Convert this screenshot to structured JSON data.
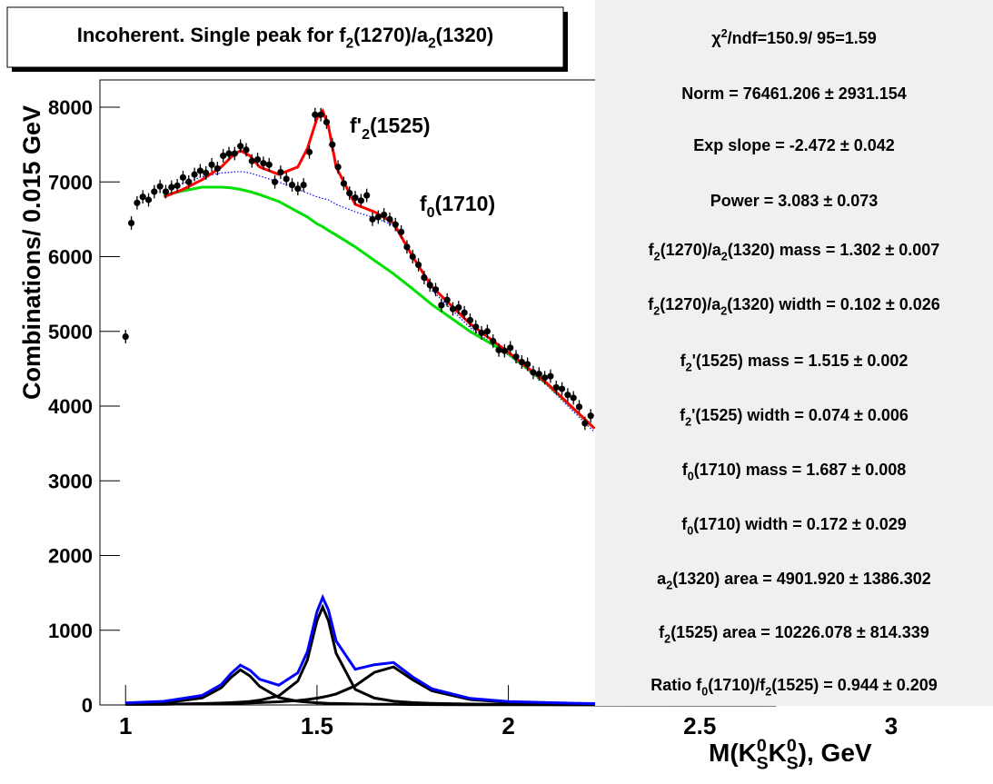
{
  "chart_data": {
    "type": "scatter",
    "title": [
      "Incoherent. Single peak for f",
      {
        "sub": "2"
      },
      "(1270)/a",
      {
        "sub": "2"
      },
      "(1320)"
    ],
    "xlabel": [
      "M(K",
      {
        "sup": "0",
        "sub": "S"
      },
      "K",
      {
        "sup": "0",
        "sub": "S"
      },
      "), GeV"
    ],
    "ylabel": "Combinations/ 0.015 GeV",
    "xlim": [
      0.933,
      3.05
    ],
    "ylim": [
      0,
      8365
    ],
    "xticks": [
      1,
      1.5,
      2,
      2.5,
      3
    ],
    "yticks": [
      0,
      1000,
      2000,
      3000,
      4000,
      5000,
      6000,
      7000,
      8000
    ],
    "x": [
      1.0,
      1.015,
      1.03,
      1.045,
      1.06,
      1.075,
      1.09,
      1.105,
      1.12,
      1.135,
      1.15,
      1.165,
      1.18,
      1.195,
      1.21,
      1.225,
      1.24,
      1.255,
      1.27,
      1.285,
      1.3,
      1.315,
      1.33,
      1.345,
      1.36,
      1.375,
      1.39,
      1.405,
      1.42,
      1.435,
      1.45,
      1.465,
      1.48,
      1.495,
      1.51,
      1.525,
      1.54,
      1.555,
      1.57,
      1.585,
      1.6,
      1.615,
      1.63,
      1.645,
      1.66,
      1.675,
      1.69,
      1.705,
      1.72,
      1.735,
      1.75,
      1.765,
      1.78,
      1.795,
      1.81,
      1.825,
      1.84,
      1.855,
      1.87,
      1.885,
      1.9,
      1.915,
      1.93,
      1.945,
      1.96,
      1.975,
      1.99,
      2.005,
      2.02,
      2.035,
      2.05,
      2.065,
      2.08,
      2.095,
      2.11,
      2.125,
      2.14,
      2.155,
      2.17,
      2.185,
      2.2,
      2.215
    ],
    "values": [
      4930,
      6450,
      6720,
      6800,
      6760,
      6870,
      6940,
      6870,
      6930,
      6950,
      7060,
      7000,
      7100,
      7150,
      7120,
      7230,
      7180,
      7350,
      7380,
      7380,
      7480,
      7430,
      7280,
      7300,
      7250,
      7230,
      7000,
      7130,
      7040,
      6960,
      6910,
      6960,
      7400,
      7900,
      7900,
      7800,
      7500,
      7200,
      6980,
      6850,
      6790,
      6750,
      6820,
      6500,
      6530,
      6560,
      6500,
      6430,
      6330,
      6130,
      6000,
      5890,
      5720,
      5620,
      5560,
      5350,
      5420,
      5300,
      5320,
      5250,
      5150,
      5060,
      4980,
      5000,
      4870,
      4750,
      4740,
      4780,
      4660,
      4590,
      4560,
      4450,
      4430,
      4380,
      4400,
      4250,
      4230,
      4150,
      4110,
      3990,
      3770,
      3870
    ],
    "yerr": 90,
    "marker_color": "#000000",
    "fits": [
      {
        "color": "#0000ff",
        "dash": true,
        "x": [
          1.1,
          1.15,
          1.2,
          1.25,
          1.275,
          1.3,
          1.325,
          1.35,
          1.4,
          1.45,
          1.475,
          1.5,
          1.515,
          1.53,
          1.55,
          1.6,
          1.65,
          1.7,
          1.75,
          1.8,
          1.9,
          2.0,
          2.1,
          2.225
        ],
        "values": [
          6880,
          6980,
          7070,
          7120,
          7130,
          7140,
          7120,
          7080,
          7000,
          6900,
          6850,
          6800,
          6780,
          6760,
          6700,
          6600,
          6520,
          6420,
          6000,
          5550,
          5050,
          4680,
          4280,
          3650
        ]
      },
      {
        "color": "#00e000",
        "dash": false,
        "x": [
          1.1,
          1.15,
          1.2,
          1.25,
          1.275,
          1.3,
          1.325,
          1.35,
          1.4,
          1.45,
          1.475,
          1.5,
          1.515,
          1.53,
          1.55,
          1.6,
          1.65,
          1.7,
          1.75,
          1.8,
          1.9,
          2.0,
          2.1,
          2.225
        ],
        "values": [
          6820,
          6880,
          6930,
          6930,
          6920,
          6900,
          6870,
          6830,
          6740,
          6600,
          6530,
          6440,
          6400,
          6350,
          6290,
          6130,
          5950,
          5770,
          5570,
          5360,
          5000,
          4700,
          4300,
          3700
        ]
      },
      {
        "color": "#ff0000",
        "dash": false,
        "x": [
          1.1,
          1.15,
          1.2,
          1.25,
          1.275,
          1.3,
          1.325,
          1.35,
          1.4,
          1.45,
          1.475,
          1.5,
          1.515,
          1.53,
          1.55,
          1.6,
          1.65,
          1.7,
          1.75,
          1.8,
          1.9,
          2.0,
          2.1,
          2.225
        ],
        "values": [
          6800,
          6900,
          7030,
          7200,
          7330,
          7420,
          7350,
          7200,
          7100,
          7200,
          7450,
          7850,
          7950,
          7750,
          7200,
          6700,
          6600,
          6450,
          6000,
          5600,
          5100,
          4720,
          4310,
          3700
        ]
      },
      {
        "color": "#000000",
        "dash": false,
        "x": [
          1.0,
          1.1,
          1.2,
          1.25,
          1.275,
          1.3,
          1.325,
          1.35,
          1.4,
          1.45,
          1.475,
          1.5,
          1.515,
          1.53,
          1.55,
          1.6,
          1.65,
          1.7,
          1.75,
          1.8,
          1.9,
          2.0,
          2.2,
          2.7
        ],
        "values": [
          13,
          28,
          94,
          230,
          367,
          470,
          388,
          249,
          100,
          50,
          38,
          29,
          26,
          22,
          19,
          13,
          10,
          8,
          6,
          5,
          3,
          2,
          1,
          0
        ]
      },
      {
        "color": "#000000",
        "dash": false,
        "x": [
          1.0,
          1.1,
          1.2,
          1.25,
          1.275,
          1.3,
          1.325,
          1.35,
          1.4,
          1.45,
          1.475,
          1.5,
          1.515,
          1.53,
          1.55,
          1.6,
          1.65,
          1.7,
          1.75,
          1.8,
          1.9,
          2.0,
          2.2,
          2.7
        ],
        "values": [
          7,
          10,
          18,
          25,
          30,
          38,
          48,
          63,
          122,
          320,
          604,
          1129,
          1310,
          1129,
          690,
          208,
          92,
          50,
          32,
          22,
          12,
          7,
          4,
          1
        ]
      },
      {
        "color": "#000000",
        "dash": false,
        "x": [
          1.0,
          1.1,
          1.2,
          1.25,
          1.275,
          1.3,
          1.325,
          1.35,
          1.4,
          1.45,
          1.475,
          1.5,
          1.515,
          1.53,
          1.55,
          1.6,
          1.65,
          1.7,
          1.75,
          1.8,
          1.9,
          2.0,
          2.2,
          2.7
        ],
        "values": [
          8,
          11,
          16,
          19,
          22,
          24,
          28,
          32,
          43,
          60,
          73,
          91,
          104,
          120,
          147,
          257,
          437,
          510,
          338,
          190,
          73,
          37,
          14,
          4
        ]
      },
      {
        "color": "#0000ff",
        "dash": false,
        "x": [
          1.0,
          1.1,
          1.2,
          1.25,
          1.275,
          1.3,
          1.325,
          1.35,
          1.4,
          1.45,
          1.475,
          1.5,
          1.515,
          1.53,
          1.55,
          1.6,
          1.65,
          1.7,
          1.75,
          1.8,
          1.9,
          2.0,
          2.2,
          2.7
        ],
        "values": [
          28,
          49,
          128,
          274,
          419,
          532,
          464,
          344,
          265,
          430,
          715,
          1249,
          1440,
          1271,
          856,
          478,
          539,
          568,
          376,
          217,
          88,
          46,
          19,
          5
        ]
      }
    ],
    "annotations": [
      [
        "f'",
        {
          "sub": "2"
        },
        "(1525)"
      ],
      [
        "f",
        {
          "sub": "0"
        },
        "(1710)"
      ]
    ],
    "stats": [
      [
        "χ",
        {
          "sup": "2"
        },
        "/ndf=150.9/ 95=1.59"
      ],
      [
        "Norm = 76461.206 ± 2931.154"
      ],
      [
        "Exp slope = -2.472 ± 0.042"
      ],
      [
        "Power = 3.083 ± 0.073"
      ],
      [
        "f",
        {
          "sub": "2"
        },
        "(1270)/a",
        {
          "sub": "2"
        },
        "(1320) mass = 1.302 ± 0.007"
      ],
      [
        "f",
        {
          "sub": "2"
        },
        "(1270)/a",
        {
          "sub": "2"
        },
        "(1320) width = 0.102 ± 0.026"
      ],
      [
        "f",
        {
          "sub": "2"
        },
        "'(1525) mass = 1.515 ± 0.002"
      ],
      [
        "f",
        {
          "sub": "2"
        },
        "'(1525) width = 0.074 ± 0.006"
      ],
      [
        "f",
        {
          "sub": "0"
        },
        "(1710) mass = 1.687 ± 0.008"
      ],
      [
        "f",
        {
          "sub": "0"
        },
        "(1710) width = 0.172 ± 0.029"
      ],
      [
        "a",
        {
          "sub": "2"
        },
        "(1320) area = 4901.920 ± 1386.302"
      ],
      [
        "f",
        {
          "sub": "2"
        },
        "(1525) area = 10226.078 ± 814.339"
      ],
      [
        "Ratio f",
        {
          "sub": "0"
        },
        "(1710)/f",
        {
          "sub": "2"
        },
        "(1525) = 0.944 ± 0.209"
      ]
    ]
  }
}
